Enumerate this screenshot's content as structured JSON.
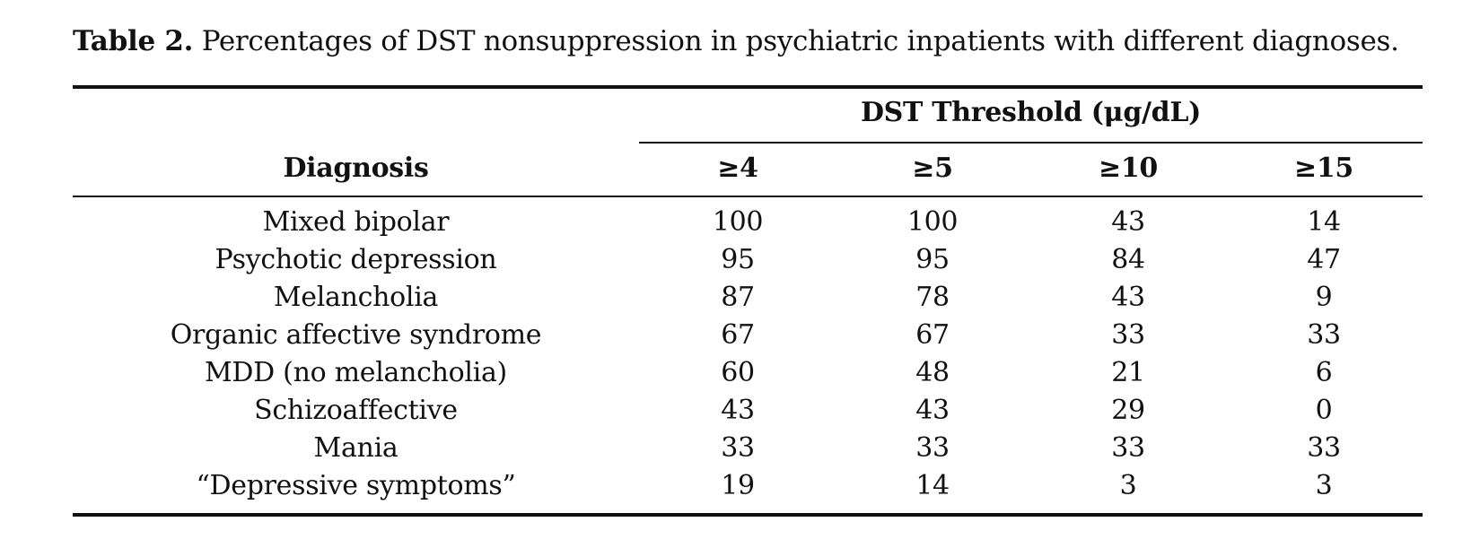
{
  "caption": {
    "label": "Table 2.",
    "text": "Percentages of DST nonsuppression in psychiatric inpatients with different diagnoses."
  },
  "table": {
    "group_header": "DST Threshold (μg/dL)",
    "row_header": "Diagnosis",
    "columns": [
      "≥4",
      "≥5",
      "≥10",
      "≥15"
    ],
    "rows": [
      {
        "diagnosis": "Mixed bipolar",
        "values": [
          "100",
          "100",
          "43",
          "14"
        ]
      },
      {
        "diagnosis": "Psychotic depression",
        "values": [
          "95",
          "95",
          "84",
          "47"
        ]
      },
      {
        "diagnosis": "Melancholia",
        "values": [
          "87",
          "78",
          "43",
          "9"
        ]
      },
      {
        "diagnosis": "Organic affective syndrome",
        "values": [
          "67",
          "67",
          "33",
          "33"
        ]
      },
      {
        "diagnosis": "MDD (no melancholia)",
        "values": [
          "60",
          "48",
          "21",
          "6"
        ]
      },
      {
        "diagnosis": "Schizoaffective",
        "values": [
          "43",
          "43",
          "29",
          "0"
        ]
      },
      {
        "diagnosis": "Mania",
        "values": [
          "33",
          "33",
          "33",
          "33"
        ]
      },
      {
        "diagnosis": "“Depressive symptoms”",
        "values": [
          "19",
          "14",
          "3",
          "3"
        ]
      }
    ]
  }
}
